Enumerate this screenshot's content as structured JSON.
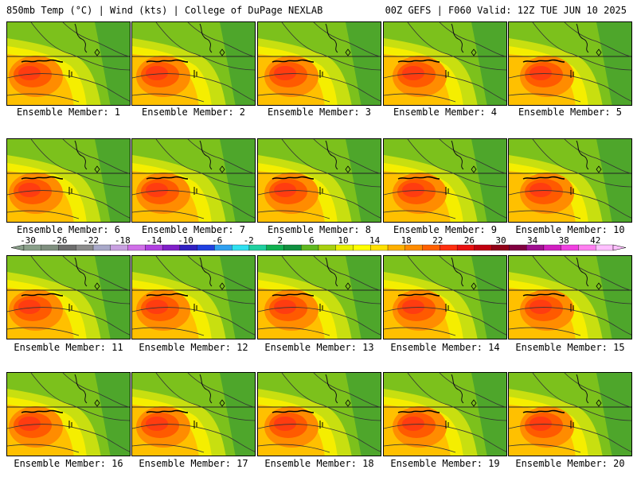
{
  "header": {
    "left_title": "850mb Temp (°C) | Wind (kts) | College of DuPage NEXLAB",
    "right_title": "00Z GEFS | F060 Valid: 12Z TUE JUN 10 2025"
  },
  "panels": [
    {
      "label": "Ensemble Member: 1"
    },
    {
      "label": "Ensemble Member: 2"
    },
    {
      "label": "Ensemble Member: 3"
    },
    {
      "label": "Ensemble Member: 4"
    },
    {
      "label": "Ensemble Member: 5"
    },
    {
      "label": "Ensemble Member: 6"
    },
    {
      "label": "Ensemble Member: 7"
    },
    {
      "label": "Ensemble Member: 8"
    },
    {
      "label": "Ensemble Member: 9"
    },
    {
      "label": "Ensemble Member: 10"
    },
    {
      "label": "Ensemble Member: 11"
    },
    {
      "label": "Ensemble Member: 12"
    },
    {
      "label": "Ensemble Member: 13"
    },
    {
      "label": "Ensemble Member: 14"
    },
    {
      "label": "Ensemble Member: 15"
    },
    {
      "label": "Ensemble Member: 16"
    },
    {
      "label": "Ensemble Member: 17"
    },
    {
      "label": "Ensemble Member: 18"
    },
    {
      "label": "Ensemble Member: 19"
    },
    {
      "label": "Ensemble Member: 20"
    }
  ],
  "colorbar": {
    "tick_labels": [
      "-30",
      "-26",
      "-22",
      "-18",
      "-14",
      "-10",
      "-6",
      "-2",
      "2",
      "6",
      "10",
      "14",
      "18",
      "22",
      "26",
      "30",
      "34",
      "38",
      "42"
    ],
    "colors": [
      "#8aa08a",
      "#7f8f7f",
      "#6e6e6e",
      "#8c8c8c",
      "#a8a8c8",
      "#c8a0e0",
      "#d070e8",
      "#b040e0",
      "#8020c8",
      "#3020c0",
      "#2040e0",
      "#30a0f0",
      "#30e0f0",
      "#20d0a0",
      "#10b050",
      "#109040",
      "#60b820",
      "#a8d010",
      "#e8f000",
      "#ffff00",
      "#ffe000",
      "#ffb000",
      "#ff8c00",
      "#ff6000",
      "#ff3010",
      "#e81010",
      "#c00010",
      "#900018",
      "#800040",
      "#a01090",
      "#d020c0",
      "#f040e0",
      "#ff80f0",
      "#ffc0ff"
    ]
  }
}
